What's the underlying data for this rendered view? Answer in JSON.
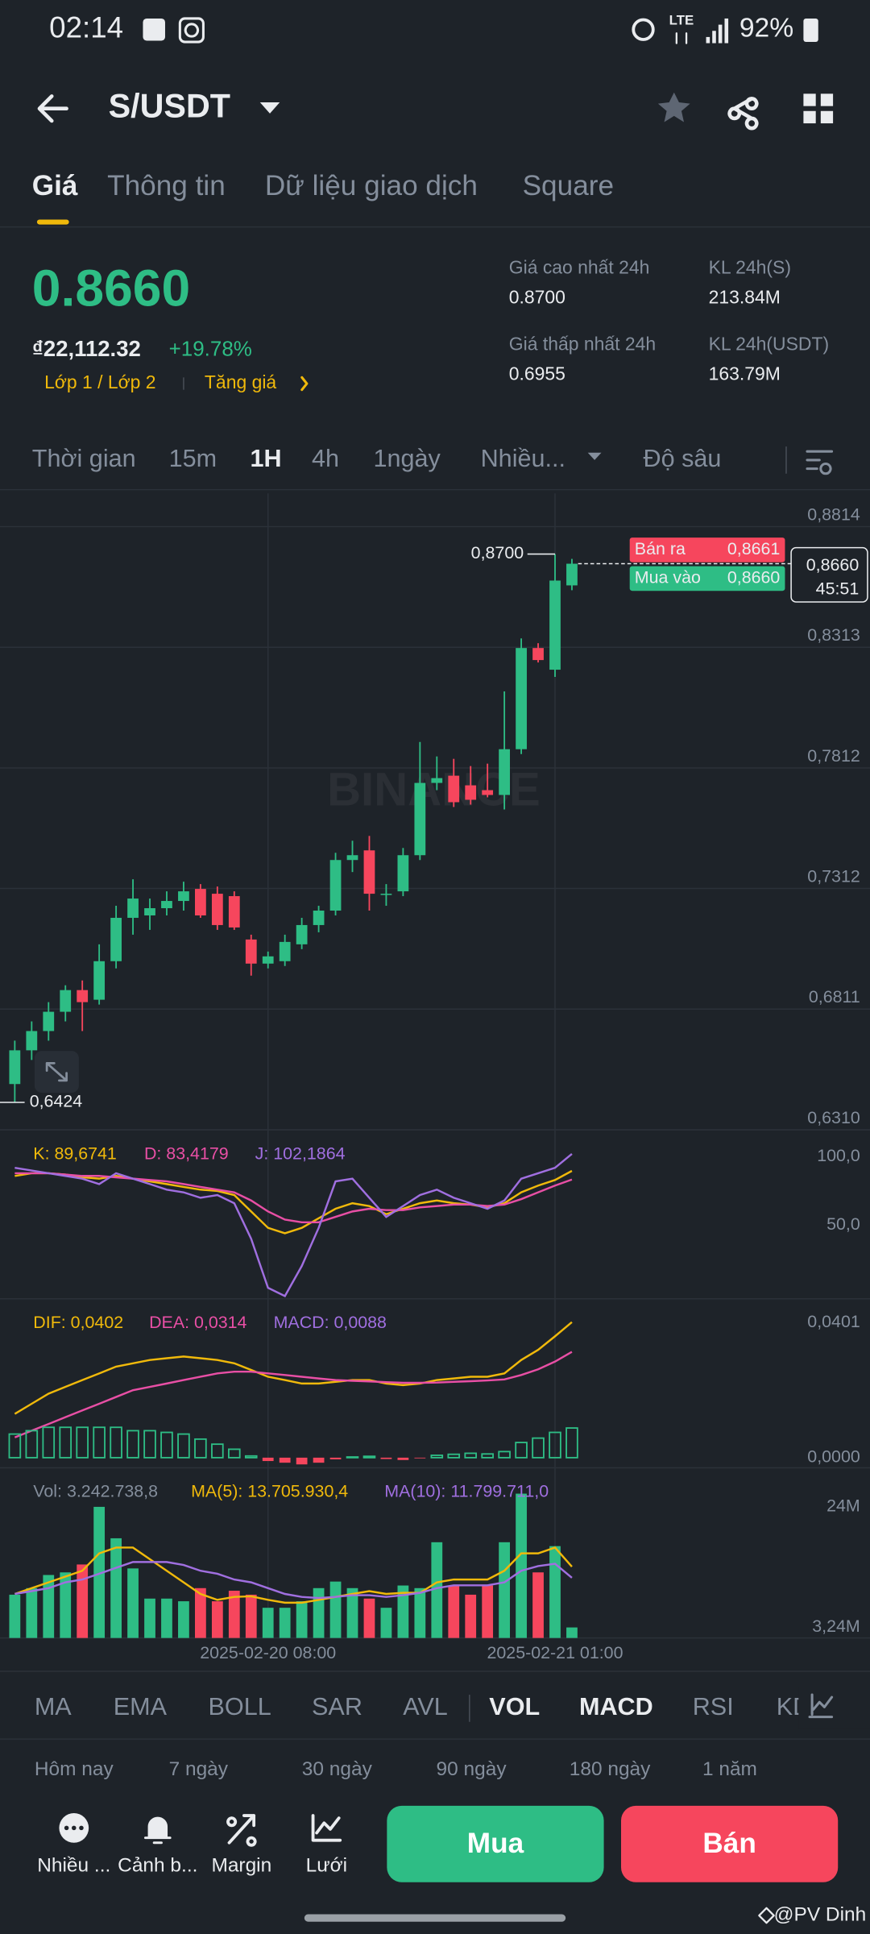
{
  "status_bar": {
    "time": "02:14",
    "network": "LTE",
    "battery": "92%"
  },
  "header": {
    "pair": "S/USDT"
  },
  "tabs": [
    "Giá",
    "Thông tin",
    "Dữ liệu giao dịch",
    "Square"
  ],
  "ticker": {
    "price": "0.8660",
    "fiat": "₫22,112.32",
    "change": "+19.78%",
    "tags": [
      "Lớp 1 / Lớp 2",
      "Tăng giá"
    ],
    "stats": [
      {
        "label": "Giá cao nhất 24h",
        "value": "0.8700"
      },
      {
        "label": "KL 24h(S)",
        "value": "213.84M"
      },
      {
        "label": "Giá thấp nhất 24h",
        "value": "0.6955"
      },
      {
        "label": "KL 24h(USDT)",
        "value": "163.79M"
      }
    ]
  },
  "intervals": [
    "Thời gian",
    "15m",
    "1H",
    "4h",
    "1ngày",
    "Nhiều...",
    "Độ sâu"
  ],
  "chart_data": [
    {
      "type": "candlestick",
      "watermark": "BINANCE",
      "categories": [
        null,
        null,
        null,
        null,
        null,
        null,
        null,
        null,
        null,
        null,
        null,
        null,
        null,
        null,
        null,
        "2025-02-20 08:00",
        null,
        null,
        null,
        null,
        null,
        null,
        null,
        null,
        null,
        null,
        null,
        null,
        null,
        null,
        null,
        null,
        "2025-02-21 01:00",
        null
      ],
      "open": [
        0.65,
        0.664,
        0.672,
        0.68,
        0.689,
        0.685,
        0.701,
        0.719,
        0.72,
        0.723,
        0.726,
        0.731,
        0.729,
        0.728,
        0.71,
        0.7,
        0.701,
        0.708,
        0.716,
        0.722,
        0.743,
        0.747,
        0.729,
        0.73,
        0.745,
        0.775,
        0.778,
        0.774,
        0.772,
        0.77,
        0.789,
        0.831,
        0.822,
        0.857
      ],
      "high": [
        0.668,
        0.676,
        0.684,
        0.691,
        0.693,
        0.708,
        0.724,
        0.735,
        0.727,
        0.73,
        0.734,
        0.733,
        0.732,
        0.73,
        0.712,
        0.705,
        0.712,
        0.719,
        0.724,
        0.746,
        0.751,
        0.753,
        0.733,
        0.748,
        0.792,
        0.786,
        0.785,
        0.782,
        0.783,
        0.813,
        0.835,
        0.833,
        0.87,
        0.868
      ],
      "low": [
        0.6424,
        0.66,
        0.668,
        0.676,
        0.672,
        0.683,
        0.698,
        0.712,
        0.714,
        0.72,
        0.722,
        0.719,
        0.714,
        0.714,
        0.695,
        0.698,
        0.699,
        0.706,
        0.713,
        0.72,
        0.738,
        0.722,
        0.724,
        0.728,
        0.743,
        0.772,
        0.765,
        0.766,
        0.769,
        0.764,
        0.787,
        0.825,
        0.819,
        0.855
      ],
      "close": [
        0.664,
        0.672,
        0.68,
        0.689,
        0.684,
        0.701,
        0.719,
        0.727,
        0.723,
        0.726,
        0.73,
        0.72,
        0.716,
        0.715,
        0.7,
        0.703,
        0.709,
        0.716,
        0.722,
        0.743,
        0.745,
        0.729,
        0.729,
        0.745,
        0.775,
        0.777,
        0.767,
        0.768,
        0.77,
        0.789,
        0.831,
        0.826,
        0.859,
        0.866
      ],
      "up_color": "#2ebd85",
      "down_color": "#f6465d",
      "ylim": [
        0.631,
        0.8952
      ],
      "yticks": [
        {
          "value": 0.8814,
          "label": "0,8814"
        },
        {
          "value": 0.8313,
          "label": "0,8313"
        },
        {
          "value": 0.7812,
          "label": "0,7812"
        },
        {
          "value": 0.7312,
          "label": "0,7312"
        },
        {
          "value": 0.6811,
          "label": "0,6811"
        },
        {
          "value": 0.631,
          "label": "0,6310"
        }
      ],
      "grid": true,
      "high_marker": {
        "value": 0.87,
        "label": "0,8700"
      },
      "low_marker": {
        "value": 0.6424,
        "label": "0,6424"
      },
      "last_price": {
        "value": 0.866,
        "label": "0,8660",
        "countdown": "45:51"
      },
      "ask": {
        "name": "Bán ra",
        "value": 0.8661,
        "label": "0,8661"
      },
      "bid": {
        "name": "Mua vào",
        "value": 0.866,
        "label": "0,8660"
      }
    },
    {
      "type": "line",
      "ylim": [
        -4,
        118
      ],
      "yticks": [
        {
          "value": 100,
          "label": "100,0"
        },
        {
          "value": 50,
          "label": "50,0"
        }
      ],
      "series": [
        {
          "name": "K",
          "legend": "K: 89,6741",
          "color": "#f0b90b",
          "values": [
            86,
            88,
            88,
            87,
            85,
            84,
            86,
            84,
            82,
            80,
            78,
            76,
            75,
            72,
            60,
            48,
            44,
            48,
            55,
            62,
            66,
            64,
            58,
            62,
            66,
            68,
            66,
            65,
            63,
            66,
            74,
            79,
            83,
            89.6741
          ]
        },
        {
          "name": "D",
          "legend": "D: 83,4179",
          "color": "#e84fa5",
          "values": [
            88,
            88,
            88,
            87,
            86,
            86,
            85,
            84,
            83,
            82,
            80,
            78,
            76,
            74,
            68,
            60,
            54,
            52,
            52,
            56,
            60,
            62,
            61,
            61,
            63,
            64,
            65,
            65,
            64,
            65,
            69,
            74,
            79,
            83.4179
          ]
        },
        {
          "name": "J",
          "legend": "J: 102,1864",
          "color": "#a06fe0",
          "values": [
            92,
            90,
            88,
            86,
            84,
            80,
            88,
            84,
            80,
            76,
            74,
            70,
            72,
            66,
            40,
            4,
            -2,
            20,
            48,
            82,
            84,
            70,
            56,
            64,
            72,
            76,
            70,
            66,
            62,
            68,
            84,
            88,
            92,
            102.1864
          ]
        }
      ]
    },
    {
      "type": "macd",
      "ylim": [
        -0.003,
        0.0464
      ],
      "yticks": [
        {
          "value": 0.0401,
          "label": "0,0401"
        },
        {
          "value": 0,
          "label": "0,0000"
        }
      ],
      "series": [
        {
          "name": "DIF",
          "legend": "DIF: 0,0402",
          "color": "#f0b90b",
          "values": [
            0.013,
            0.016,
            0.019,
            0.021,
            0.023,
            0.025,
            0.027,
            0.028,
            0.029,
            0.0295,
            0.03,
            0.0295,
            0.029,
            0.028,
            0.026,
            0.024,
            0.023,
            0.022,
            0.022,
            0.0225,
            0.023,
            0.023,
            0.022,
            0.0215,
            0.022,
            0.023,
            0.0235,
            0.024,
            0.024,
            0.025,
            0.029,
            0.032,
            0.036,
            0.0402
          ]
        },
        {
          "name": "DEA",
          "legend": "DEA: 0,0314",
          "color": "#e84fa5",
          "values": [
            0.006,
            0.008,
            0.01,
            0.012,
            0.014,
            0.016,
            0.018,
            0.02,
            0.021,
            0.022,
            0.023,
            0.024,
            0.025,
            0.0255,
            0.0255,
            0.025,
            0.0245,
            0.024,
            0.0235,
            0.023,
            0.0228,
            0.0226,
            0.0224,
            0.0222,
            0.0222,
            0.0223,
            0.0225,
            0.0227,
            0.0229,
            0.0232,
            0.0245,
            0.0262,
            0.0285,
            0.0314
          ]
        },
        {
          "name": "MACD",
          "legend": "MACD: 0,0088",
          "color": "#a06fe0",
          "kind": "bar",
          "up_color": "#2ebd85",
          "down_color": "#f6465d",
          "values": [
            0.007,
            0.008,
            0.009,
            0.009,
            0.009,
            0.009,
            0.009,
            0.008,
            0.008,
            0.0075,
            0.007,
            0.0055,
            0.004,
            0.0025,
            0.0005,
            -0.001,
            -0.0015,
            -0.002,
            -0.0015,
            -0.0005,
            0.0002,
            0.0004,
            -0.0004,
            -0.0007,
            -0.0002,
            0.0007,
            0.001,
            0.0013,
            0.0011,
            0.0018,
            0.0045,
            0.0058,
            0.0075,
            0.0088
          ]
        }
      ]
    },
    {
      "type": "bar",
      "ylim": [
        1430000,
        30300000
      ],
      "yticks": [
        {
          "value": 24000000,
          "label": "24M"
        },
        {
          "value": 3240000,
          "label": "3,24M"
        }
      ],
      "series": [
        {
          "name": "Vol",
          "legend": "Vol: 3.242.738,8",
          "color": "#848e9c",
          "kind": "bar",
          "values": [
            8880000,
            10010000,
            12270000,
            12720000,
            14080000,
            24000000,
            18590000,
            13400000,
            8210000,
            8210000,
            7750000,
            10010000,
            7750000,
            9560000,
            8880000,
            6630000,
            6630000,
            7750000,
            10010000,
            11140000,
            10010000,
            8210000,
            6630000,
            10460000,
            10010000,
            17910000,
            10460000,
            8880000,
            10460000,
            17910000,
            26270000,
            12720000,
            17240000,
            3242738.8
          ]
        },
        {
          "name": "MA(5)",
          "legend": "MA(5): 13.705.930,4",
          "color": "#f0b90b",
          "values": [
            9000000,
            10000000,
            11000000,
            12000000,
            13000000,
            16000000,
            17000000,
            17000000,
            15000000,
            13000000,
            11000000,
            9000000,
            8000000,
            8500000,
            8600000,
            8000000,
            7500000,
            7500000,
            8000000,
            8500000,
            9000000,
            9500000,
            9000000,
            9200000,
            9200000,
            11000000,
            11500000,
            11500000,
            11500000,
            13000000,
            16000000,
            16000000,
            17000000,
            13705930.4
          ]
        },
        {
          "name": "MA(10)",
          "legend": "MA(10): 11.799.711,0",
          "color": "#a06fe0",
          "values": [
            9000000,
            9500000,
            10000000,
            11000000,
            11500000,
            12500000,
            13500000,
            14500000,
            14500000,
            14500000,
            14000000,
            13000000,
            12500000,
            11500000,
            11000000,
            10000000,
            9000000,
            8500000,
            8300000,
            8500000,
            8800000,
            8800000,
            8500000,
            8800000,
            9200000,
            10000000,
            10500000,
            10500000,
            10500000,
            11000000,
            13000000,
            13800000,
            14200000,
            11799711.0
          ]
        }
      ]
    }
  ],
  "indicator_tabs": [
    "MA",
    "EMA",
    "BOLL",
    "SAR",
    "AVL",
    "VOL",
    "MACD",
    "RSI",
    "KDJ"
  ],
  "periods": [
    "Hôm nay",
    "7 ngày",
    "30 ngày",
    "90 ngày",
    "180 ngày",
    "1 năm"
  ],
  "actions": [
    "Nhiều ...",
    "Cảnh b...",
    "Margin",
    "Lưới"
  ],
  "buttons": {
    "buy": "Mua",
    "sell": "Bán"
  },
  "watermark": "@PV Dinh"
}
